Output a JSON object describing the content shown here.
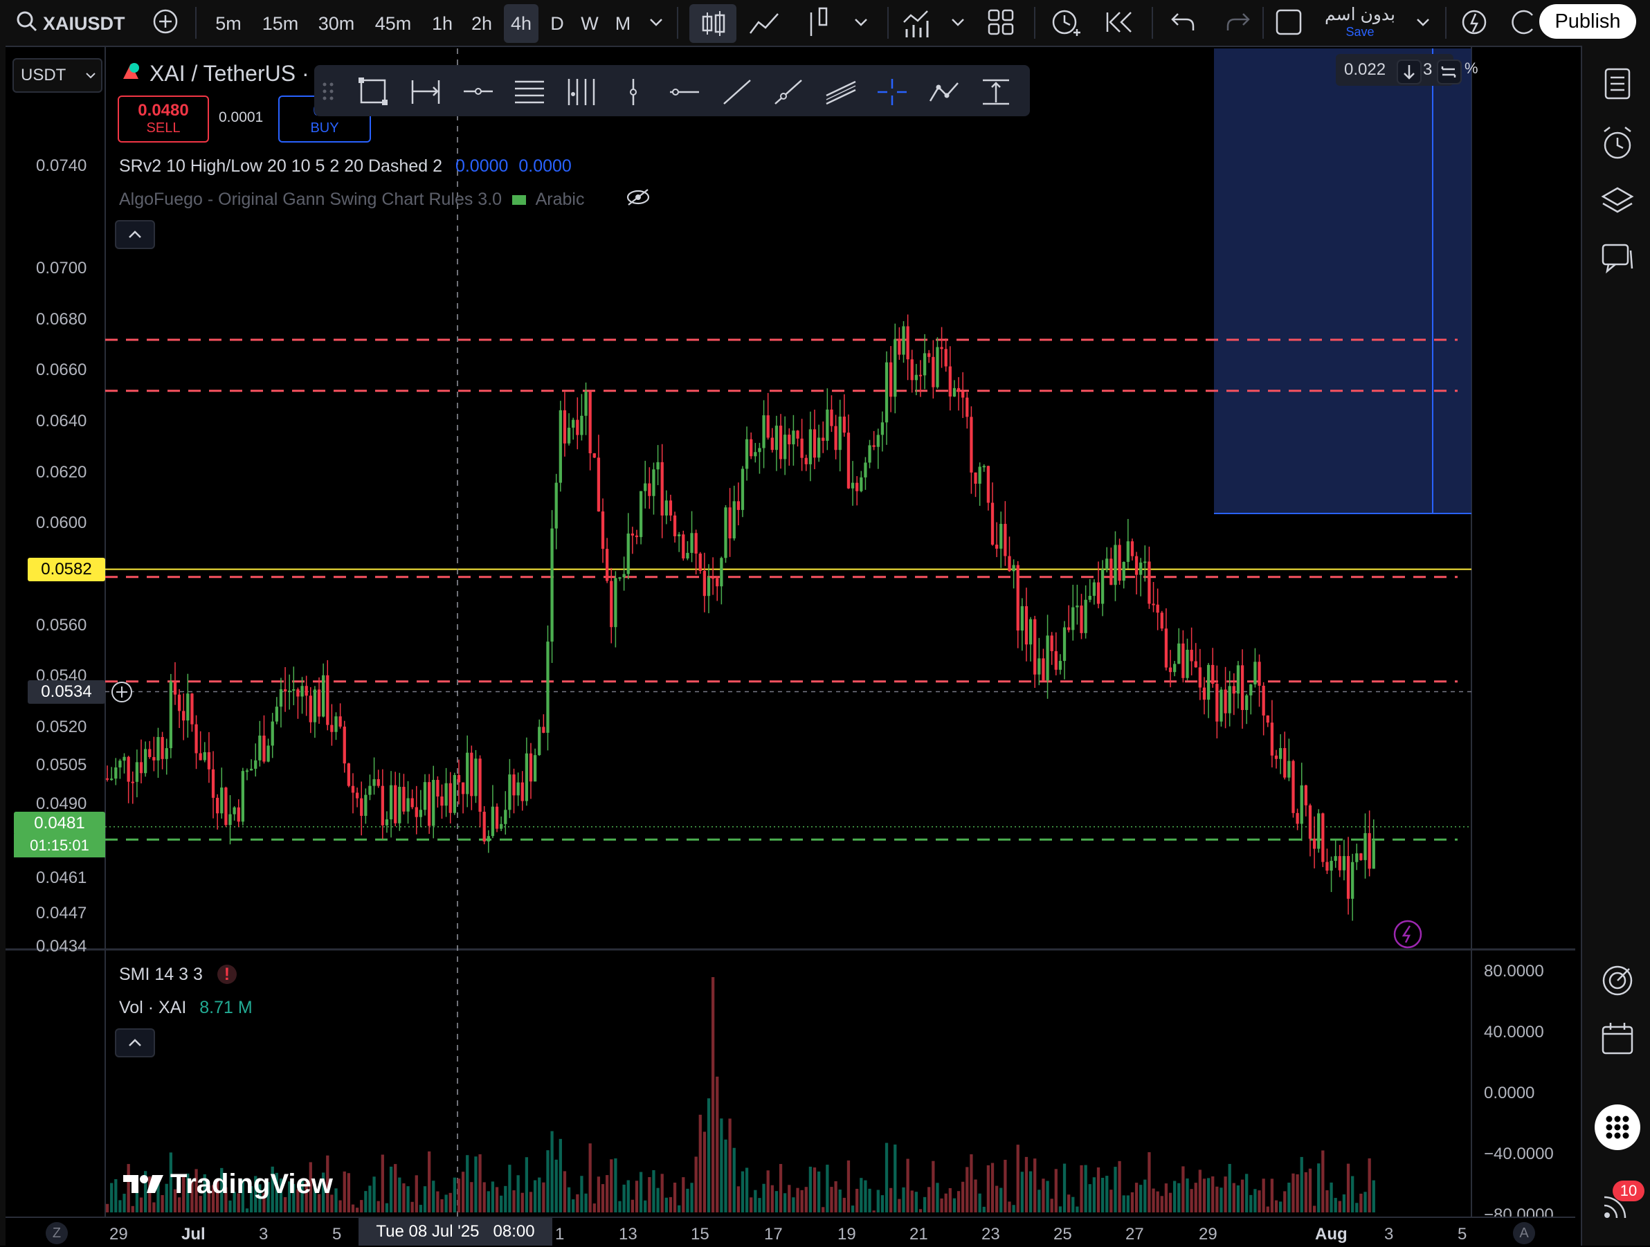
{
  "toolbar": {
    "symbol": "XAIUSDT",
    "timeframes": [
      "5m",
      "15m",
      "30m",
      "45m",
      "1h",
      "2h",
      "4h",
      "D",
      "W",
      "M"
    ],
    "active_timeframe": "4h",
    "layout_name": "بدون اسم",
    "save_label": "Save",
    "publish_label": "Publish"
  },
  "chart_header": {
    "currency": "USDT",
    "title": "XAI / TetherUS · ",
    "sell_price": "0.0480",
    "sell_label": "SELL",
    "spread": "0.0001",
    "buy_price": "0.0",
    "buy_label": "BUY",
    "indicator1_name": "SRv2 10 High/Low 20 10 5 2 20 Dashed 2",
    "indicator1_v1": "0.0000",
    "indicator1_v2": "0.0000",
    "indicator2_name": "AlgoFuego - Original Gann Swing Chart Rules 3.0",
    "indicator2_suffix": "Arabic",
    "top_right_value": "0.022",
    "top_right_suffix": "3",
    "top_right_pct": "%"
  },
  "price_axis": {
    "ticks": [
      "0.0740",
      "0.0700",
      "0.0680",
      "0.0660",
      "0.0640",
      "0.0620",
      "0.0600",
      "0.0560",
      "0.0540",
      "0.0520",
      "0.0505",
      "0.0490",
      "0.0461",
      "0.0447",
      "0.0434"
    ],
    "yellow_label": "0.0582",
    "crosshair_label": "0.0534",
    "last_price_label": "0.0481",
    "countdown_label": "01:15:01"
  },
  "lower_pane": {
    "smi_label": "SMI 14 3 3",
    "vol_label": "Vol · XAI",
    "vol_value": "8.71 M",
    "axis_ticks": [
      "80.0000",
      "40.0000",
      "0.0000",
      "−40.0000",
      "−80.0000"
    ]
  },
  "time_axis": {
    "labels": [
      "29",
      "Jul",
      "3",
      "5",
      "1",
      "13",
      "15",
      "17",
      "19",
      "21",
      "23",
      "25",
      "27",
      "29",
      "Aug",
      "3",
      "5"
    ],
    "crosshair_label": "Tue 08 Jul '25   08:00",
    "left_button": "Z",
    "right_button": "A"
  },
  "watermark": "TradingView",
  "notifications_count": "10",
  "colors": {
    "up": "#089981",
    "down": "#f23645",
    "candle_up": "#4caf50",
    "resistance": "#f7525f",
    "support": "#4caf50",
    "yellow": "#ffeb3b",
    "accent": "#2962ff"
  },
  "chart_data": {
    "type": "candlestick",
    "symbol": "XAI / TetherUS",
    "timeframe": "4h",
    "x_labels": [
      "29",
      "Jul",
      "3",
      "5",
      "1",
      "13",
      "15",
      "17",
      "19",
      "21",
      "23",
      "25",
      "27",
      "29",
      "Aug",
      "3",
      "5"
    ],
    "y_ticks": [
      0.074,
      0.07,
      0.068,
      0.066,
      0.064,
      0.062,
      0.06,
      0.056,
      0.054,
      0.052,
      0.0505,
      0.049,
      0.0461,
      0.0447,
      0.0434
    ],
    "ylim": [
      0.0434,
      0.0745
    ],
    "resistance_levels": [
      0.0672,
      0.0652,
      0.0579,
      0.0538
    ],
    "support_levels": [
      0.0476
    ],
    "highlight_level": 0.0582,
    "crosshair_price": 0.0534,
    "last_price": 0.0481,
    "close_path": [
      {
        "x": 0,
        "y": 0.05
      },
      {
        "x": 0.04,
        "y": 0.0515
      },
      {
        "x": 0.05,
        "y": 0.0535
      },
      {
        "x": 0.09,
        "y": 0.0485
      },
      {
        "x": 0.13,
        "y": 0.0535
      },
      {
        "x": 0.16,
        "y": 0.053
      },
      {
        "x": 0.18,
        "y": 0.0495
      },
      {
        "x": 0.22,
        "y": 0.0485
      },
      {
        "x": 0.27,
        "y": 0.0505
      },
      {
        "x": 0.26,
        "y": 0.048
      },
      {
        "x": 0.3,
        "y": 0.0495
      },
      {
        "x": 0.32,
        "y": 0.052
      },
      {
        "x": 0.32,
        "y": 0.053
      },
      {
        "x": 0.33,
        "y": 0.0635
      },
      {
        "x": 0.35,
        "y": 0.065
      },
      {
        "x": 0.37,
        "y": 0.0565
      },
      {
        "x": 0.4,
        "y": 0.062
      },
      {
        "x": 0.44,
        "y": 0.0575
      },
      {
        "x": 0.48,
        "y": 0.0645
      },
      {
        "x": 0.5,
        "y": 0.0625
      },
      {
        "x": 0.53,
        "y": 0.064
      },
      {
        "x": 0.55,
        "y": 0.0615
      },
      {
        "x": 0.58,
        "y": 0.067
      },
      {
        "x": 0.61,
        "y": 0.066
      },
      {
        "x": 0.63,
        "y": 0.0635
      },
      {
        "x": 0.66,
        "y": 0.058
      },
      {
        "x": 0.68,
        "y": 0.0545
      },
      {
        "x": 0.71,
        "y": 0.056
      },
      {
        "x": 0.75,
        "y": 0.0595
      },
      {
        "x": 0.78,
        "y": 0.0545
      },
      {
        "x": 0.82,
        "y": 0.053
      },
      {
        "x": 0.84,
        "y": 0.054
      },
      {
        "x": 0.87,
        "y": 0.049
      },
      {
        "x": 0.9,
        "y": 0.047
      },
      {
        "x": 0.91,
        "y": 0.0462
      },
      {
        "x": 0.93,
        "y": 0.0481
      }
    ],
    "volume_peak": "8.71 M"
  }
}
